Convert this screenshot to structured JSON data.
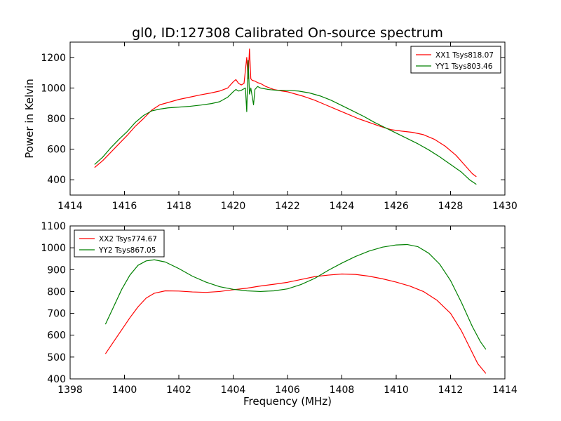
{
  "figure": {
    "title": "gl0, ID:127308 Calibrated On-source spectrum",
    "shared_xlabel": "Frequency (MHz)"
  },
  "chart_data": [
    {
      "type": "line",
      "title": "gl0, ID:127308 Calibrated On-source spectrum",
      "xlabel": "",
      "ylabel": "Power in Kelvin",
      "xlim": [
        1414,
        1430
      ],
      "ylim": [
        300,
        1300
      ],
      "xticks": [
        1414,
        1416,
        1418,
        1420,
        1422,
        1424,
        1426,
        1428,
        1430
      ],
      "yticks": [
        400,
        600,
        800,
        1000,
        1200
      ],
      "grid": false,
      "legend_position": "top-right",
      "series": [
        {
          "name": "XX1 Tsys818.07",
          "color": "#ff0000",
          "points": [
            [
              1414.9,
              480
            ],
            [
              1415.2,
              525
            ],
            [
              1415.5,
              580
            ],
            [
              1415.8,
              635
            ],
            [
              1416.1,
              690
            ],
            [
              1416.4,
              750
            ],
            [
              1416.7,
              800
            ],
            [
              1417.0,
              855
            ],
            [
              1417.3,
              890
            ],
            [
              1417.6,
              905
            ],
            [
              1418.0,
              925
            ],
            [
              1418.4,
              940
            ],
            [
              1418.8,
              955
            ],
            [
              1419.2,
              968
            ],
            [
              1419.5,
              980
            ],
            [
              1419.8,
              1000
            ],
            [
              1420.0,
              1040
            ],
            [
              1420.1,
              1055
            ],
            [
              1420.2,
              1030
            ],
            [
              1420.3,
              1020
            ],
            [
              1420.4,
              1030
            ],
            [
              1420.5,
              1200
            ],
            [
              1420.55,
              1060
            ],
            [
              1420.6,
              1255
            ],
            [
              1420.65,
              1060
            ],
            [
              1420.7,
              1050
            ],
            [
              1420.8,
              1045
            ],
            [
              1420.9,
              1035
            ],
            [
              1421.0,
              1030
            ],
            [
              1421.2,
              1010
            ],
            [
              1421.5,
              990
            ],
            [
              1421.8,
              980
            ],
            [
              1422.0,
              975
            ],
            [
              1422.3,
              960
            ],
            [
              1422.6,
              945
            ],
            [
              1423.0,
              920
            ],
            [
              1423.4,
              890
            ],
            [
              1423.8,
              860
            ],
            [
              1424.2,
              830
            ],
            [
              1424.6,
              800
            ],
            [
              1425.0,
              775
            ],
            [
              1425.4,
              750
            ],
            [
              1425.8,
              728
            ],
            [
              1426.2,
              718
            ],
            [
              1426.6,
              710
            ],
            [
              1427.0,
              695
            ],
            [
              1427.4,
              665
            ],
            [
              1427.8,
              620
            ],
            [
              1428.2,
              560
            ],
            [
              1428.5,
              500
            ],
            [
              1428.8,
              440
            ],
            [
              1428.95,
              420
            ]
          ]
        },
        {
          "name": "YY1 Tsys803.46",
          "color": "#008000",
          "points": [
            [
              1414.9,
              500
            ],
            [
              1415.2,
              548
            ],
            [
              1415.5,
              610
            ],
            [
              1415.8,
              665
            ],
            [
              1416.1,
              715
            ],
            [
              1416.4,
              775
            ],
            [
              1416.7,
              820
            ],
            [
              1417.0,
              850
            ],
            [
              1417.3,
              862
            ],
            [
              1417.6,
              870
            ],
            [
              1418.0,
              875
            ],
            [
              1418.4,
              880
            ],
            [
              1418.8,
              888
            ],
            [
              1419.2,
              898
            ],
            [
              1419.5,
              910
            ],
            [
              1419.8,
              940
            ],
            [
              1420.0,
              975
            ],
            [
              1420.1,
              990
            ],
            [
              1420.2,
              980
            ],
            [
              1420.3,
              985
            ],
            [
              1420.4,
              995
            ],
            [
              1420.45,
              1000
            ],
            [
              1420.5,
              845
            ],
            [
              1420.55,
              1180
            ],
            [
              1420.6,
              960
            ],
            [
              1420.65,
              1000
            ],
            [
              1420.75,
              890
            ],
            [
              1420.8,
              990
            ],
            [
              1420.9,
              1010
            ],
            [
              1421.0,
              1000
            ],
            [
              1421.3,
              990
            ],
            [
              1421.6,
              985
            ],
            [
              1422.0,
              985
            ],
            [
              1422.4,
              980
            ],
            [
              1422.8,
              968
            ],
            [
              1423.2,
              948
            ],
            [
              1423.6,
              920
            ],
            [
              1424.0,
              885
            ],
            [
              1424.4,
              850
            ],
            [
              1424.8,
              815
            ],
            [
              1425.2,
              775
            ],
            [
              1425.6,
              740
            ],
            [
              1426.0,
              705
            ],
            [
              1426.4,
              670
            ],
            [
              1426.8,
              635
            ],
            [
              1427.2,
              595
            ],
            [
              1427.6,
              550
            ],
            [
              1428.0,
              500
            ],
            [
              1428.4,
              450
            ],
            [
              1428.7,
              400
            ],
            [
              1428.95,
              370
            ]
          ]
        }
      ]
    },
    {
      "type": "line",
      "title": "",
      "xlabel": "Frequency (MHz)",
      "ylabel": "",
      "xlim": [
        1398,
        1414
      ],
      "ylim": [
        400,
        1100
      ],
      "xticks": [
        1398,
        1400,
        1402,
        1404,
        1406,
        1408,
        1410,
        1412,
        1414
      ],
      "yticks": [
        400,
        500,
        600,
        700,
        800,
        900,
        1000,
        1100
      ],
      "grid": false,
      "legend_position": "top-left",
      "series": [
        {
          "name": "XX2 Tsys774.67",
          "color": "#ff0000",
          "points": [
            [
              1399.3,
              515
            ],
            [
              1399.6,
              570
            ],
            [
              1399.9,
              625
            ],
            [
              1400.2,
              680
            ],
            [
              1400.5,
              730
            ],
            [
              1400.8,
              770
            ],
            [
              1401.1,
              792
            ],
            [
              1401.5,
              803
            ],
            [
              1402.0,
              802
            ],
            [
              1402.5,
              798
            ],
            [
              1403.0,
              796
            ],
            [
              1403.5,
              800
            ],
            [
              1404.0,
              808
            ],
            [
              1404.5,
              815
            ],
            [
              1405.0,
              825
            ],
            [
              1405.5,
              833
            ],
            [
              1406.0,
              842
            ],
            [
              1406.5,
              855
            ],
            [
              1407.0,
              868
            ],
            [
              1407.5,
              875
            ],
            [
              1408.0,
              880
            ],
            [
              1408.5,
              878
            ],
            [
              1409.0,
              870
            ],
            [
              1409.5,
              858
            ],
            [
              1410.0,
              843
            ],
            [
              1410.5,
              825
            ],
            [
              1411.0,
              800
            ],
            [
              1411.5,
              760
            ],
            [
              1412.0,
              700
            ],
            [
              1412.4,
              620
            ],
            [
              1412.7,
              545
            ],
            [
              1413.0,
              470
            ],
            [
              1413.3,
              425
            ]
          ]
        },
        {
          "name": "YY2 Tsys867.05",
          "color": "#008000",
          "points": [
            [
              1399.3,
              650
            ],
            [
              1399.6,
              730
            ],
            [
              1399.9,
              810
            ],
            [
              1400.2,
              875
            ],
            [
              1400.5,
              920
            ],
            [
              1400.8,
              940
            ],
            [
              1401.1,
              945
            ],
            [
              1401.5,
              935
            ],
            [
              1402.0,
              905
            ],
            [
              1402.5,
              870
            ],
            [
              1403.0,
              843
            ],
            [
              1403.5,
              822
            ],
            [
              1404.0,
              810
            ],
            [
              1404.5,
              803
            ],
            [
              1405.0,
              800
            ],
            [
              1405.5,
              803
            ],
            [
              1406.0,
              812
            ],
            [
              1406.5,
              832
            ],
            [
              1407.0,
              860
            ],
            [
              1407.5,
              897
            ],
            [
              1408.0,
              930
            ],
            [
              1408.5,
              960
            ],
            [
              1409.0,
              985
            ],
            [
              1409.5,
              1003
            ],
            [
              1410.0,
              1013
            ],
            [
              1410.4,
              1015
            ],
            [
              1410.8,
              1005
            ],
            [
              1411.2,
              975
            ],
            [
              1411.6,
              925
            ],
            [
              1412.0,
              850
            ],
            [
              1412.4,
              750
            ],
            [
              1412.8,
              640
            ],
            [
              1413.1,
              570
            ],
            [
              1413.3,
              535
            ]
          ]
        }
      ]
    }
  ]
}
